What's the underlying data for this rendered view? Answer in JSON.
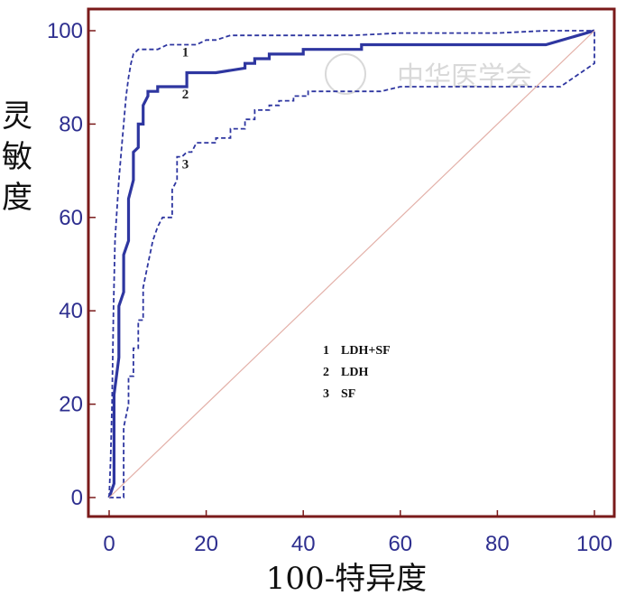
{
  "chart_data": {
    "type": "line",
    "title": "",
    "xlabel": "100-特异度",
    "ylabel": "灵敏度",
    "xlim": [
      0,
      100
    ],
    "ylim": [
      0,
      100
    ],
    "x_ticks": [
      0,
      20,
      40,
      60,
      80,
      100
    ],
    "y_ticks": [
      0,
      20,
      40,
      60,
      80,
      100
    ],
    "grid": false,
    "legend_position": "center",
    "series": [
      {
        "name": "LDH+SF",
        "label": "1",
        "style": "dashed",
        "color": "#2e36a0",
        "x": [
          0,
          0.3,
          0.6,
          0.9,
          1.2,
          1.5,
          2,
          2.5,
          3,
          3.5,
          4,
          4.5,
          5,
          6,
          8,
          10,
          12,
          15,
          18,
          20,
          22,
          25,
          30,
          40,
          50,
          60,
          70,
          80,
          90,
          95,
          100
        ],
        "y": [
          0,
          8,
          20,
          40,
          55,
          60,
          68,
          74,
          80,
          86,
          90,
          93,
          95,
          96,
          96,
          96,
          97,
          97,
          97,
          98,
          98,
          99,
          99,
          99,
          99,
          99.5,
          99.5,
          99.5,
          100,
          100,
          100
        ]
      },
      {
        "name": "LDH",
        "label": "2",
        "style": "solid",
        "color": "#2e36a0",
        "x": [
          0,
          1,
          1,
          2,
          2,
          3,
          3,
          4,
          4,
          5,
          5,
          6,
          6,
          7,
          7,
          8,
          8,
          10,
          10,
          12,
          12,
          16,
          16,
          22,
          22,
          28,
          28,
          30,
          30,
          33,
          33,
          40,
          40,
          52,
          52,
          90,
          100
        ],
        "y": [
          0,
          3,
          22,
          30,
          41,
          44,
          52,
          55,
          64,
          68,
          74,
          75,
          80,
          80,
          84,
          86,
          87,
          87,
          88,
          88,
          88,
          88,
          91,
          91,
          91,
          92,
          93,
          93,
          94,
          94,
          95,
          95,
          96,
          96,
          97,
          97,
          100
        ]
      },
      {
        "name": "SF",
        "label": "3",
        "style": "dashed",
        "color": "#2e36a0",
        "x": [
          0,
          2,
          3,
          3,
          4,
          4,
          5,
          5,
          6,
          6,
          7,
          7,
          8,
          9,
          10,
          11,
          12,
          13,
          13,
          14,
          14,
          15,
          16,
          17,
          18,
          20,
          22,
          22,
          25,
          25,
          28,
          28,
          30,
          30,
          33,
          33,
          35,
          35,
          38,
          38,
          41,
          41,
          50,
          56,
          60,
          70,
          80,
          93,
          100,
          100
        ],
        "y": [
          0,
          0,
          0,
          15,
          20,
          26,
          26,
          32,
          32,
          38,
          38,
          45,
          50,
          55,
          58,
          60,
          60,
          60,
          66,
          68,
          73,
          73,
          74,
          74,
          76,
          76,
          76,
          77,
          77,
          79,
          79,
          81,
          81,
          83,
          83,
          84,
          84,
          85,
          85,
          86,
          86,
          87,
          87,
          87,
          88,
          88,
          88,
          88,
          93,
          100
        ]
      },
      {
        "name": "",
        "label": "",
        "style": "reference",
        "color": "#e3b0a8",
        "x": [
          0,
          100
        ],
        "y": [
          0,
          100
        ]
      }
    ],
    "legend": [
      {
        "num": "1",
        "label": "LDH+SF"
      },
      {
        "num": "2",
        "label": "LDH"
      },
      {
        "num": "3",
        "label": "SF"
      }
    ],
    "curve_labels": [
      {
        "text": "1",
        "x": 15,
        "y": 95.5
      },
      {
        "text": "2",
        "x": 15,
        "y": 86.5
      },
      {
        "text": "3",
        "x": 15,
        "y": 71.5
      }
    ]
  },
  "ylabel_chars": [
    "灵",
    "敏",
    "度"
  ],
  "watermark": "中华医学会"
}
